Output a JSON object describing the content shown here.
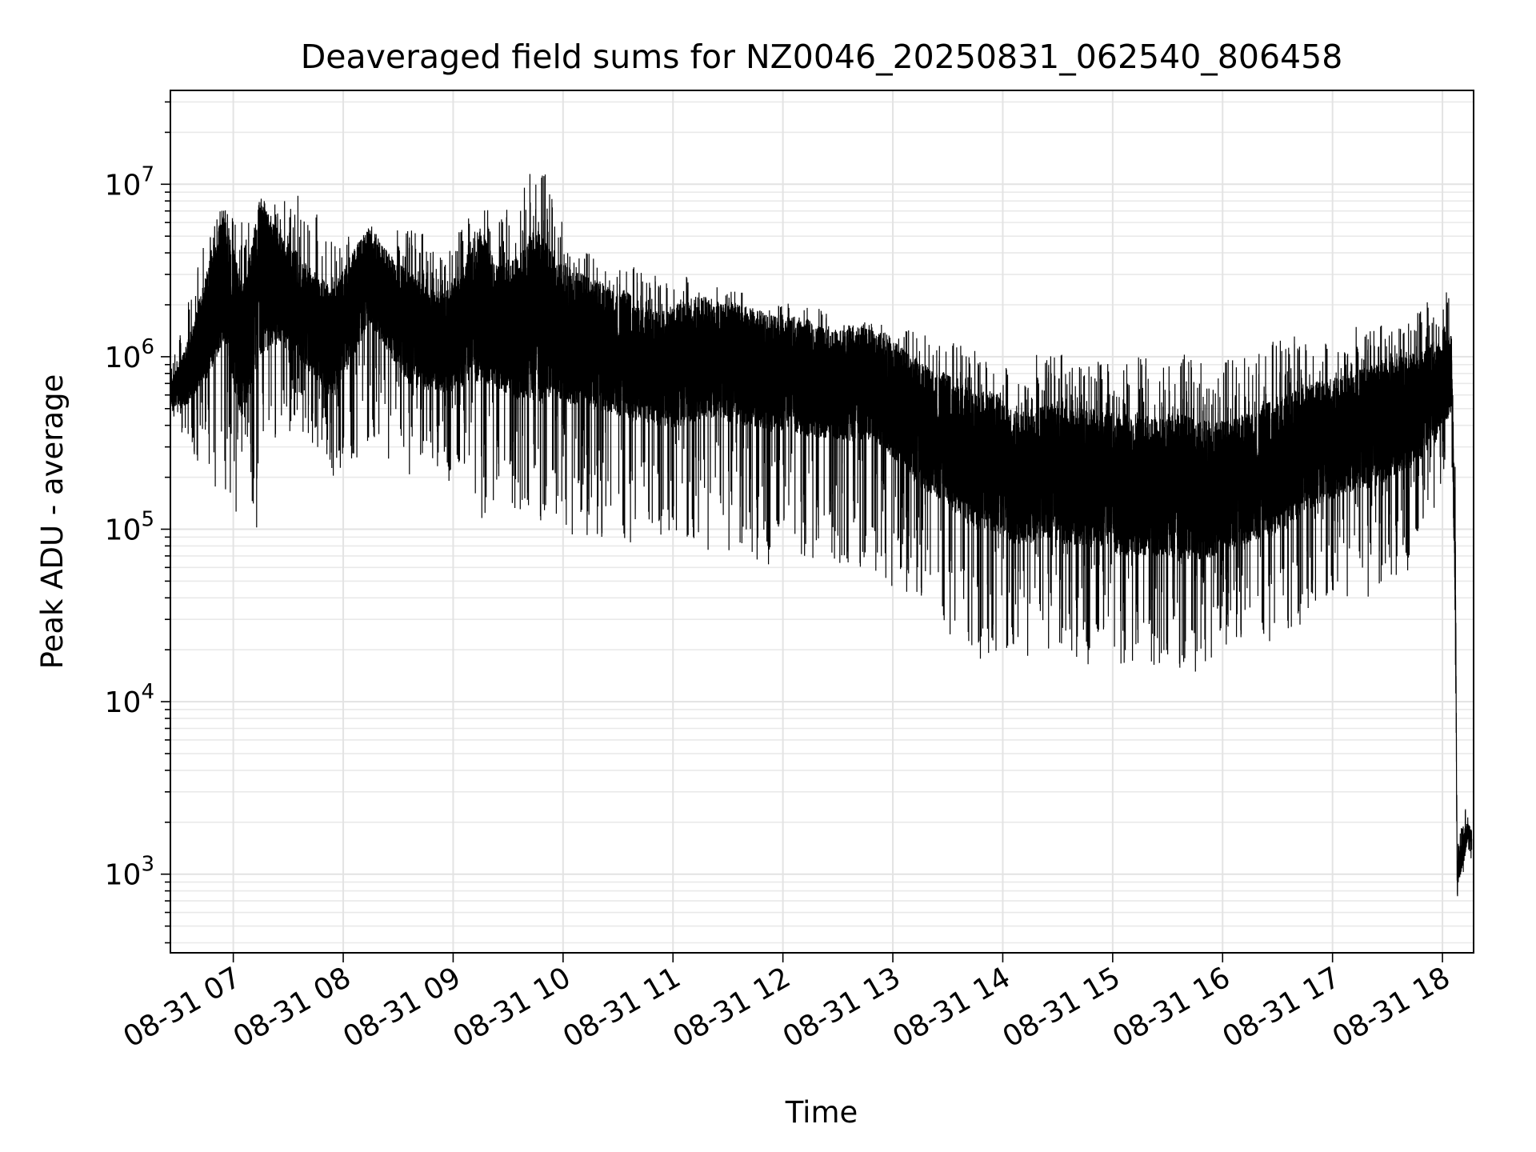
{
  "chart_data": {
    "type": "line",
    "title": "Deaveraged field sums for NZ0046_20250831_062540_806458",
    "xlabel": "Time",
    "ylabel": "Peak ADU - average",
    "yscale": "log",
    "ylim": [
      350,
      35000000
    ],
    "xlim": [
      "2025-08-31T06:25:40",
      "2025-08-31T18:17:00"
    ],
    "x_ticks": [
      "08-31 07",
      "08-31 08",
      "08-31 09",
      "08-31 10",
      "08-31 11",
      "08-31 12",
      "08-31 13",
      "08-31 14",
      "08-31 15",
      "08-31 16",
      "08-31 17",
      "08-31 18"
    ],
    "y_ticks": [
      {
        "value": 1000,
        "base": "10",
        "exp": "3"
      },
      {
        "value": 10000,
        "base": "10",
        "exp": "4"
      },
      {
        "value": 100000,
        "base": "10",
        "exp": "5"
      },
      {
        "value": 1000000,
        "base": "10",
        "exp": "6"
      },
      {
        "value": 10000000,
        "base": "10",
        "exp": "7"
      }
    ],
    "grid": true,
    "line_color": "#000000",
    "series": [
      {
        "x": [
          "2025-08-31T06:25:40",
          "2025-08-31T06:35",
          "2025-08-31T06:45",
          "2025-08-31T06:55",
          "2025-08-31T07:05",
          "2025-08-31T07:15",
          "2025-08-31T07:25",
          "2025-08-31T07:35",
          "2025-08-31T07:45",
          "2025-08-31T07:55",
          "2025-08-31T08:05",
          "2025-08-31T08:15",
          "2025-08-31T08:25",
          "2025-08-31T08:35",
          "2025-08-31T08:45",
          "2025-08-31T08:55",
          "2025-08-31T09:05",
          "2025-08-31T09:15",
          "2025-08-31T09:25",
          "2025-08-31T09:35",
          "2025-08-31T09:45",
          "2025-08-31T09:55",
          "2025-08-31T10:05",
          "2025-08-31T10:15",
          "2025-08-31T10:25",
          "2025-08-31T10:35",
          "2025-08-31T10:45",
          "2025-08-31T10:55",
          "2025-08-31T11:05",
          "2025-08-31T11:15",
          "2025-08-31T11:25",
          "2025-08-31T11:35",
          "2025-08-31T11:45",
          "2025-08-31T11:55",
          "2025-08-31T12:05",
          "2025-08-31T12:15",
          "2025-08-31T12:25",
          "2025-08-31T12:35",
          "2025-08-31T12:45",
          "2025-08-31T12:55",
          "2025-08-31T13:05",
          "2025-08-31T13:15",
          "2025-08-31T13:25",
          "2025-08-31T13:35",
          "2025-08-31T13:45",
          "2025-08-31T13:55",
          "2025-08-31T14:05",
          "2025-08-31T14:15",
          "2025-08-31T14:25",
          "2025-08-31T14:35",
          "2025-08-31T14:45",
          "2025-08-31T14:55",
          "2025-08-31T15:05",
          "2025-08-31T15:15",
          "2025-08-31T15:25",
          "2025-08-31T15:35",
          "2025-08-31T15:45",
          "2025-08-31T15:55",
          "2025-08-31T16:05",
          "2025-08-31T16:15",
          "2025-08-31T16:25",
          "2025-08-31T16:35",
          "2025-08-31T16:45",
          "2025-08-31T16:55",
          "2025-08-31T17:05",
          "2025-08-31T17:15",
          "2025-08-31T17:25",
          "2025-08-31T17:35",
          "2025-08-31T17:45",
          "2025-08-31T17:55",
          "2025-08-31T18:00",
          "2025-08-31T18:05",
          "2025-08-31T18:07",
          "2025-08-31T18:08",
          "2025-08-31T18:10",
          "2025-08-31T18:12",
          "2025-08-31T18:14",
          "2025-08-31T18:16"
        ],
        "y": [
          600000,
          800000,
          1500000,
          3000000,
          1000000,
          3000000,
          2500000,
          2000000,
          1500000,
          1200000,
          2000000,
          3000000,
          2000000,
          1500000,
          1300000,
          1200000,
          1500000,
          2000000,
          1500000,
          1500000,
          1800000,
          1500000,
          1300000,
          1200000,
          1100000,
          1000000,
          900000,
          850000,
          900000,
          1000000,
          950000,
          900000,
          850000,
          800000,
          800000,
          750000,
          700000,
          700000,
          700000,
          650000,
          500000,
          400000,
          350000,
          300000,
          250000,
          250000,
          200000,
          200000,
          220000,
          200000,
          200000,
          200000,
          180000,
          180000,
          180000,
          180000,
          170000,
          170000,
          180000,
          200000,
          220000,
          250000,
          300000,
          320000,
          350000,
          380000,
          400000,
          450000,
          500000,
          600000,
          700000,
          800000,
          60000,
          1000,
          1200,
          1500,
          1800,
          1600
        ],
        "upper": [
          900000,
          2000000,
          5000000,
          8000000,
          6000000,
          10000000,
          8000000,
          9000000,
          7000000,
          5000000,
          5000000,
          6000000,
          5000000,
          6000000,
          5000000,
          4000000,
          6000000,
          9000000,
          6000000,
          10000000,
          18000000,
          8000000,
          5000000,
          4000000,
          3000000,
          3500000,
          3000000,
          3000000,
          3500000,
          3000000,
          2500000,
          2500000,
          2000000,
          2000000,
          2200000,
          2000000,
          1800000,
          1700000,
          1600000,
          1600000,
          1500000,
          1400000,
          1200000,
          1200000,
          1100000,
          1100000,
          1000000,
          1000000,
          1100000,
          1000000,
          1000000,
          1000000,
          1000000,
          1000000,
          1100000,
          1100000,
          1000000,
          1000000,
          1000000,
          1000000,
          1200000,
          1300000,
          1400000,
          1400000,
          1500000,
          1500000,
          1500000,
          1600000,
          1800000,
          2500000,
          2000000,
          3500000,
          600000,
          1400,
          1800,
          2500,
          2200,
          2000
        ],
        "lower": [
          450000,
          300000,
          200000,
          150000,
          100000,
          80000,
          300000,
          400000,
          300000,
          200000,
          200000,
          300000,
          250000,
          200000,
          250000,
          200000,
          150000,
          100000,
          150000,
          120000,
          100000,
          120000,
          90000,
          80000,
          70000,
          70000,
          100000,
          90000,
          80000,
          70000,
          80000,
          70000,
          60000,
          60000,
          70000,
          60000,
          70000,
          50000,
          60000,
          50000,
          40000,
          35000,
          25000,
          20000,
          18000,
          16000,
          18000,
          18000,
          20000,
          17000,
          16000,
          15000,
          15000,
          16000,
          15000,
          15000,
          14000,
          18000,
          20000,
          20000,
          20000,
          22000,
          30000,
          35000,
          40000,
          40000,
          40000,
          50000,
          60000,
          100000,
          200000,
          300000,
          20000,
          700,
          800,
          1000,
          1300,
          1200
        ]
      }
    ]
  }
}
